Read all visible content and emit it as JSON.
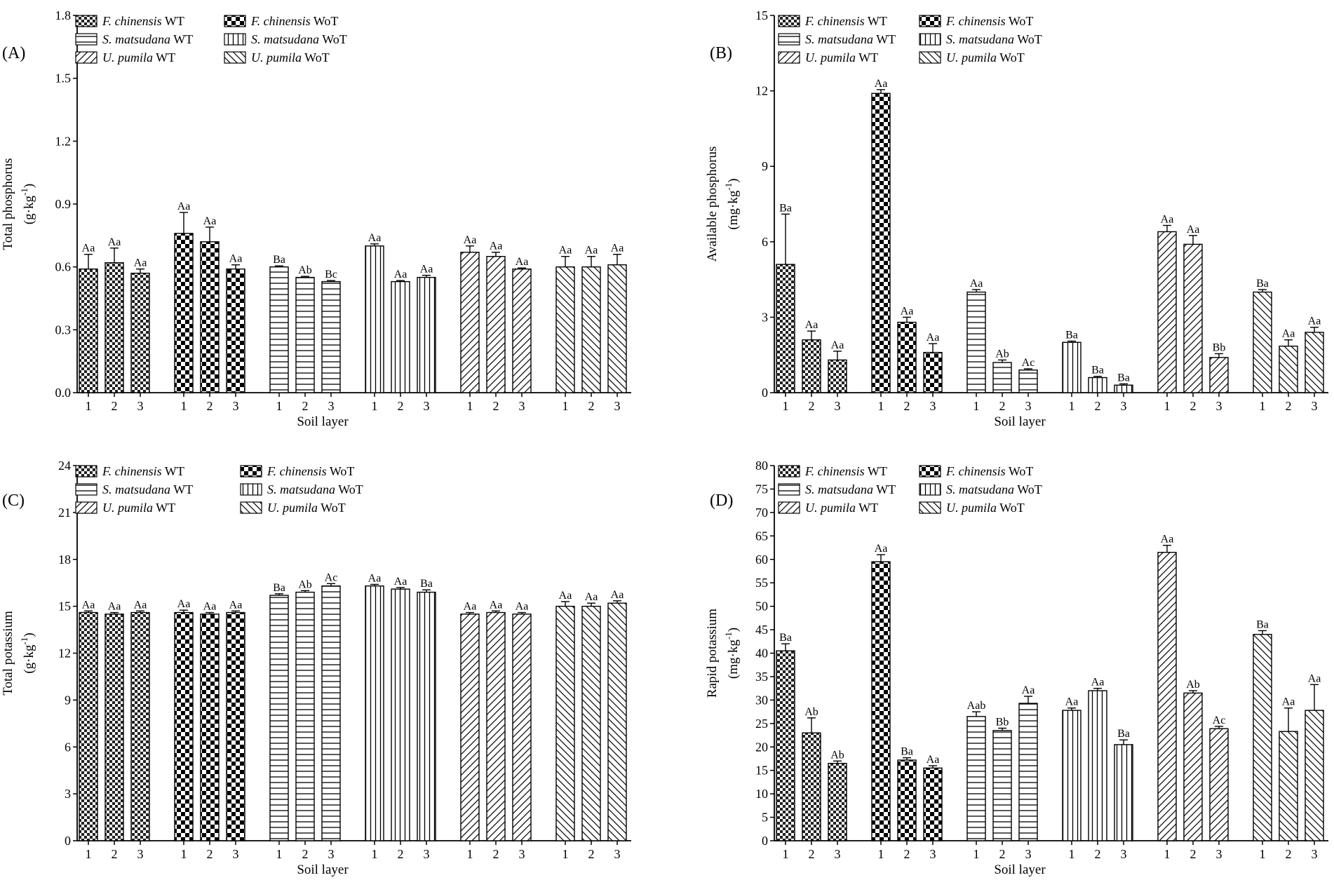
{
  "series_names": [
    "F. chinensis WT",
    "F. chinensis WoT",
    "S. matsudana WT",
    "S. matsudana WoT",
    "U. pumila WT",
    "U. pumila WoT"
  ],
  "legend": [
    {
      "italic": "F. chinensis",
      "suffix": " WT",
      "pattern": "checker-small"
    },
    {
      "italic": "S. matsudana",
      "suffix": " WT",
      "pattern": "hlines"
    },
    {
      "italic": "U. pumila",
      "suffix": " WT",
      "pattern": "diag-fwd"
    },
    {
      "italic": "F. chinensis",
      "suffix": " WoT",
      "pattern": "checker-big"
    },
    {
      "italic": "S. matsudana",
      "suffix": " WoT",
      "pattern": "vlines"
    },
    {
      "italic": "U. pumila",
      "suffix": " WoT",
      "pattern": "diag-back"
    }
  ],
  "chart_data": [
    {
      "panel": "(A)",
      "type": "bar",
      "ylabel_main": "Total phosphorus",
      "ylabel_unit_pre": "(g·kg",
      "ylabel_unit_sup": "-1",
      "ylabel_unit_post": ")",
      "xlabel": "Soil layer",
      "ylim": [
        0,
        1.8
      ],
      "ticks": [
        "0.0",
        "0.3",
        "0.6",
        "0.9",
        "1.2",
        "1.5",
        "1.8"
      ],
      "categories": [
        "1",
        "2",
        "3"
      ],
      "series": [
        {
          "name": "F. chinensis WT",
          "values": [
            0.59,
            0.62,
            0.57
          ],
          "err": [
            0.07,
            0.07,
            0.02
          ],
          "letters": [
            "Aa",
            "Aa",
            "Aa"
          ]
        },
        {
          "name": "F. chinensis WoT",
          "values": [
            0.76,
            0.72,
            0.59
          ],
          "err": [
            0.1,
            0.07,
            0.02
          ],
          "letters": [
            "Aa",
            "Aa",
            "Aa"
          ]
        },
        {
          "name": "S. matsudana WT",
          "values": [
            0.6,
            0.55,
            0.53
          ],
          "err": [
            0.005,
            0.005,
            0.005
          ],
          "letters": [
            "Ba",
            "Ab",
            "Bc"
          ]
        },
        {
          "name": "S. matsudana WoT",
          "values": [
            0.7,
            0.53,
            0.55
          ],
          "err": [
            0.01,
            0.005,
            0.01
          ],
          "letters": [
            "Aa",
            "Aa",
            "Aa"
          ]
        },
        {
          "name": "U. pumila WT",
          "values": [
            0.67,
            0.65,
            0.59
          ],
          "err": [
            0.03,
            0.02,
            0.005
          ],
          "letters": [
            "Aa",
            "Aa",
            "Aa"
          ]
        },
        {
          "name": "U. pumila WoT",
          "values": [
            0.6,
            0.6,
            0.61
          ],
          "err": [
            0.05,
            0.05,
            0.05
          ],
          "letters": [
            "Aa",
            "Aa",
            "Aa"
          ]
        }
      ]
    },
    {
      "panel": "(B)",
      "type": "bar",
      "ylabel_main": "Available phosphorus",
      "ylabel_unit_pre": "(mg·kg",
      "ylabel_unit_sup": "-1",
      "ylabel_unit_post": ")",
      "xlabel": "Soil layer",
      "ylim": [
        0,
        15
      ],
      "ticks": [
        "0",
        "3",
        "6",
        "9",
        "12",
        "15"
      ],
      "categories": [
        "1",
        "2",
        "3"
      ],
      "series": [
        {
          "name": "F. chinensis WT",
          "values": [
            5.1,
            2.1,
            1.3
          ],
          "err": [
            2.0,
            0.35,
            0.35
          ],
          "letters": [
            "Ba",
            "Aa",
            "Aa"
          ]
        },
        {
          "name": "F. chinensis WoT",
          "values": [
            11.9,
            2.8,
            1.6
          ],
          "err": [
            0.15,
            0.2,
            0.35
          ],
          "letters": [
            "Aa",
            "Aa",
            "Aa"
          ]
        },
        {
          "name": "S. matsudana WT",
          "values": [
            4.0,
            1.2,
            0.9
          ],
          "err": [
            0.1,
            0.1,
            0.05
          ],
          "letters": [
            "Aa",
            "Ab",
            "Ac"
          ]
        },
        {
          "name": "S. matsudana WoT",
          "values": [
            2.0,
            0.6,
            0.3
          ],
          "err": [
            0.05,
            0.05,
            0.05
          ],
          "letters": [
            "Ba",
            "Ba",
            "Ba"
          ]
        },
        {
          "name": "U. pumila WT",
          "values": [
            6.4,
            5.9,
            1.4
          ],
          "err": [
            0.25,
            0.35,
            0.15
          ],
          "letters": [
            "Aa",
            "Aa",
            "Bb"
          ]
        },
        {
          "name": "U. pumila WoT",
          "values": [
            4.0,
            1.85,
            2.4
          ],
          "err": [
            0.1,
            0.25,
            0.2
          ],
          "letters": [
            "Ba",
            "Aa",
            "Aa"
          ]
        }
      ]
    },
    {
      "panel": "(C)",
      "type": "bar",
      "ylabel_main": "Total potassium",
      "ylabel_unit_pre": "(g·kg",
      "ylabel_unit_sup": "-1",
      "ylabel_unit_post": ")",
      "xlabel": "Soil layer",
      "ylim": [
        0,
        24
      ],
      "ticks": [
        "0",
        "3",
        "6",
        "9",
        "12",
        "15",
        "18",
        "21",
        "24"
      ],
      "categories": [
        "1",
        "2",
        "3"
      ],
      "series": [
        {
          "name": "F. chinensis WT",
          "values": [
            14.6,
            14.5,
            14.6
          ],
          "err": [
            0.1,
            0.1,
            0.1
          ],
          "letters": [
            "Aa",
            "Aa",
            "Aa"
          ]
        },
        {
          "name": "F. chinensis WoT",
          "values": [
            14.6,
            14.5,
            14.6
          ],
          "err": [
            0.15,
            0.1,
            0.1
          ],
          "letters": [
            "Aa",
            "Aa",
            "Aa"
          ]
        },
        {
          "name": "S. matsudana WT",
          "values": [
            15.7,
            15.9,
            16.3
          ],
          "err": [
            0.1,
            0.1,
            0.15
          ],
          "letters": [
            "Ba",
            "Ab",
            "Ac"
          ]
        },
        {
          "name": "S. matsudana WoT",
          "values": [
            16.3,
            16.1,
            15.9
          ],
          "err": [
            0.1,
            0.1,
            0.15
          ],
          "letters": [
            "Aa",
            "Aa",
            "Ba"
          ]
        },
        {
          "name": "U. pumila WT",
          "values": [
            14.5,
            14.6,
            14.5
          ],
          "err": [
            0.1,
            0.1,
            0.1
          ],
          "letters": [
            "Aa",
            "Aa",
            "Aa"
          ]
        },
        {
          "name": "U. pumila WoT",
          "values": [
            15.0,
            15.0,
            15.2
          ],
          "err": [
            0.3,
            0.2,
            0.15
          ],
          "letters": [
            "Aa",
            "Aa",
            "Aa"
          ]
        }
      ]
    },
    {
      "panel": "(D)",
      "type": "bar",
      "ylabel_main": "Rapid potassium",
      "ylabel_unit_pre": "(mg·kg",
      "ylabel_unit_sup": "-1",
      "ylabel_unit_post": ")",
      "xlabel": "Soil layer",
      "ylim": [
        0,
        80
      ],
      "ticks": [
        "0",
        "5",
        "10",
        "15",
        "20",
        "25",
        "30",
        "35",
        "40",
        "45",
        "50",
        "55",
        "60",
        "65",
        "70",
        "75",
        "80"
      ],
      "categories": [
        "1",
        "2",
        "3"
      ],
      "series": [
        {
          "name": "F. chinensis WT",
          "values": [
            40.5,
            23.0,
            16.5
          ],
          "err": [
            1.5,
            3.2,
            0.5
          ],
          "letters": [
            "Ba",
            "Ab",
            "Ab"
          ]
        },
        {
          "name": "F. chinensis WoT",
          "values": [
            59.5,
            17.2,
            15.5
          ],
          "err": [
            1.5,
            0.5,
            0.5
          ],
          "letters": [
            "Aa",
            "Ba",
            "Aa"
          ]
        },
        {
          "name": "S. matsudana WT",
          "values": [
            26.5,
            23.5,
            29.3
          ],
          "err": [
            1.0,
            0.5,
            1.5
          ],
          "letters": [
            "Aab",
            "Bb",
            "Aa"
          ]
        },
        {
          "name": "S. matsudana WoT",
          "values": [
            27.8,
            32.0,
            20.5
          ],
          "err": [
            0.5,
            0.5,
            1.0
          ],
          "letters": [
            "Aa",
            "Aa",
            "Ba"
          ]
        },
        {
          "name": "U. pumila WT",
          "values": [
            61.5,
            31.5,
            23.9
          ],
          "err": [
            1.5,
            0.5,
            0.5
          ],
          "letters": [
            "Aa",
            "Ab",
            "Ac"
          ]
        },
        {
          "name": "U. pumila WoT",
          "values": [
            44.0,
            23.3,
            27.8
          ],
          "err": [
            0.8,
            5.0,
            5.5
          ],
          "letters": [
            "Ba",
            "Aa",
            "Aa"
          ]
        }
      ]
    }
  ]
}
